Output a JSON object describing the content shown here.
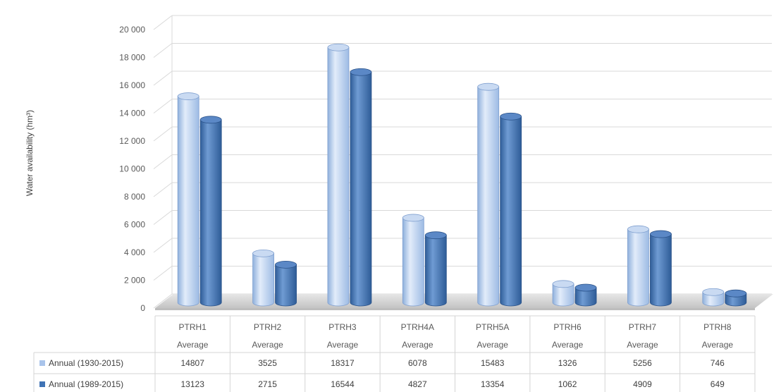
{
  "chart_data": {
    "type": "bar",
    "categories": [
      "PTRH1 Average",
      "PTRH2 Average",
      "PTRH3 Average",
      "PTRH4A Average",
      "PTRH5A Average",
      "PTRH6 Average",
      "PTRH7 Average",
      "PTRH8 Average"
    ],
    "category_lines": [
      [
        "PTRH1",
        "Average"
      ],
      [
        "PTRH2",
        "Average"
      ],
      [
        "PTRH3",
        "Average"
      ],
      [
        "PTRH4A",
        "Average"
      ],
      [
        "PTRH5A",
        "Average"
      ],
      [
        "PTRH6",
        "Average"
      ],
      [
        "PTRH7",
        "Average"
      ],
      [
        "PTRH8",
        "Average"
      ]
    ],
    "series": [
      {
        "name": "Annual (1930-2015)",
        "color": "#a9c4eb",
        "values": [
          14807,
          3525,
          18317,
          6078,
          15483,
          1326,
          5256,
          746
        ]
      },
      {
        "name": "Annual (1989-2015)",
        "color": "#3f73b5",
        "values": [
          13123,
          2715,
          16544,
          4827,
          13354,
          1062,
          4909,
          649
        ]
      }
    ],
    "ylabel": "Water availability (hm³)",
    "ylim": [
      0,
      20000
    ],
    "yticks": [
      0,
      2000,
      4000,
      6000,
      8000,
      10000,
      12000,
      14000,
      16000,
      18000,
      20000
    ],
    "ytick_labels": [
      "0",
      "2 000",
      "4 000",
      "6 000",
      "8 000",
      "10 000",
      "12 000",
      "14 000",
      "16 000",
      "18 000",
      "20 000"
    ],
    "grid": true,
    "legend": "data-table-below",
    "style": "3d-cylinder"
  }
}
